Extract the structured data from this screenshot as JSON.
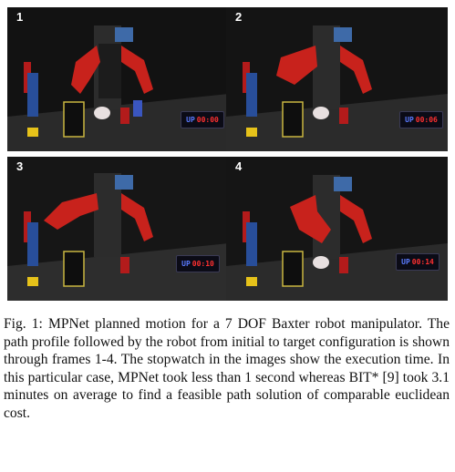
{
  "figure": {
    "frames": [
      {
        "number": "1",
        "stopwatch_prefix": "UP",
        "stopwatch_time": "00:00"
      },
      {
        "number": "2",
        "stopwatch_prefix": "UP",
        "stopwatch_time": "00:06"
      },
      {
        "number": "3",
        "stopwatch_prefix": "UP",
        "stopwatch_time": "00:10"
      },
      {
        "number": "4",
        "stopwatch_prefix": "UP",
        "stopwatch_time": "00:14"
      }
    ]
  },
  "caption": {
    "label": "Fig. 1:",
    "text": "MPNet planned motion for a 7 DOF Baxter robot manipulator. The path profile followed by the robot from initial to target configuration is shown through frames 1-4. The stopwatch in the images show the execution time. In this particular case, MPNet took less than 1 second whereas BIT* [9] took 3.1 minutes on average to find a feasible path solution of comparable euclidean cost."
  },
  "colors": {
    "robot_red": "#c8221c",
    "stopwatch_digits": "#ff3030",
    "stopwatch_prefix": "#5a7bff"
  }
}
